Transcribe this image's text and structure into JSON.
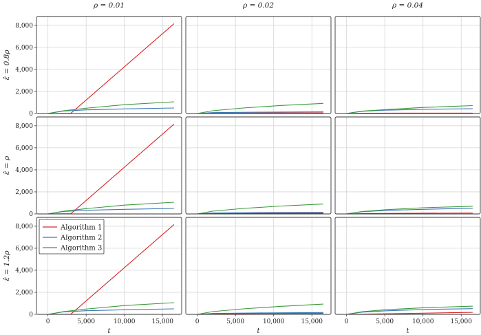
{
  "chart_data": {
    "type": "line",
    "layout": "3x3 facet grid",
    "col_titles": [
      "ρ = 0.01",
      "ρ = 0.02",
      "ρ = 0.04"
    ],
    "row_titles": [
      "ε̂ = 0.8ρ",
      "ε̂ = ρ",
      "ε̂ = 1.2ρ"
    ],
    "xlabel": "t",
    "xlim": [
      -1500,
      17500
    ],
    "ylim": [
      0,
      8800
    ],
    "xticks": [
      0,
      5000,
      10000,
      15000
    ],
    "xtick_labels": [
      "0",
      "5,000",
      "10,000",
      "15,000"
    ],
    "yticks": [
      0,
      2000,
      4000,
      6000,
      8000
    ],
    "ytick_labels": [
      "0",
      "2,000",
      "4,000",
      "6,000",
      "8,000"
    ],
    "grid": true,
    "legend": {
      "placement": "top-left of bottom-left panel",
      "entries": [
        "Algorithm 1",
        "Algorithm 2",
        "Algorithm 3"
      ]
    },
    "colors": {
      "Algorithm 1": "#d62728",
      "Algorithm 2": "#3a78b5",
      "Algorithm 3": "#3a9a3a"
    },
    "panels": [
      {
        "row": 0,
        "col": 0,
        "series": [
          {
            "name": "Algorithm 1",
            "points": [
              [
                0,
                0
              ],
              [
                3000,
                20
              ],
              [
                16500,
                8150
              ]
            ]
          },
          {
            "name": "Algorithm 2",
            "points": [
              [
                0,
                0
              ],
              [
                2000,
                220
              ],
              [
                5000,
                330
              ],
              [
                10000,
                420
              ],
              [
                16500,
                500
              ]
            ]
          },
          {
            "name": "Algorithm 3",
            "points": [
              [
                0,
                0
              ],
              [
                2000,
                250
              ],
              [
                5000,
                480
              ],
              [
                10000,
                800
              ],
              [
                16500,
                1060
              ]
            ]
          }
        ]
      },
      {
        "row": 0,
        "col": 1,
        "series": [
          {
            "name": "Algorithm 1",
            "points": [
              [
                0,
                0
              ],
              [
                2000,
                40
              ],
              [
                8000,
                50
              ],
              [
                16500,
                60
              ]
            ]
          },
          {
            "name": "Algorithm 2",
            "points": [
              [
                0,
                0
              ],
              [
                2000,
                80
              ],
              [
                8000,
                120
              ],
              [
                16500,
                150
              ]
            ]
          },
          {
            "name": "Algorithm 3",
            "points": [
              [
                0,
                0
              ],
              [
                2000,
                250
              ],
              [
                6000,
                500
              ],
              [
                11000,
                730
              ],
              [
                16500,
                920
              ]
            ]
          }
        ]
      },
      {
        "row": 0,
        "col": 2,
        "series": [
          {
            "name": "Algorithm 1",
            "points": [
              [
                0,
                0
              ],
              [
                2000,
                30
              ],
              [
                8000,
                40
              ],
              [
                16500,
                40
              ]
            ]
          },
          {
            "name": "Algorithm 2",
            "points": [
              [
                0,
                0
              ],
              [
                2000,
                200
              ],
              [
                5000,
                300
              ],
              [
                10000,
                380
              ],
              [
                16500,
                430
              ]
            ]
          },
          {
            "name": "Algorithm 3",
            "points": [
              [
                0,
                0
              ],
              [
                2000,
                220
              ],
              [
                5000,
                350
              ],
              [
                10000,
                550
              ],
              [
                16500,
                720
              ]
            ]
          }
        ]
      },
      {
        "row": 1,
        "col": 0,
        "series": [
          {
            "name": "Algorithm 1",
            "points": [
              [
                0,
                0
              ],
              [
                3000,
                20
              ],
              [
                16500,
                8150
              ]
            ]
          },
          {
            "name": "Algorithm 2",
            "points": [
              [
                0,
                0
              ],
              [
                2000,
                220
              ],
              [
                5000,
                330
              ],
              [
                10000,
                420
              ],
              [
                16500,
                500
              ]
            ]
          },
          {
            "name": "Algorithm 3",
            "points": [
              [
                0,
                0
              ],
              [
                2000,
                250
              ],
              [
                5000,
                480
              ],
              [
                10000,
                800
              ],
              [
                16500,
                1060
              ]
            ]
          }
        ]
      },
      {
        "row": 1,
        "col": 1,
        "series": [
          {
            "name": "Algorithm 1",
            "points": [
              [
                0,
                0
              ],
              [
                2000,
                40
              ],
              [
                8000,
                60
              ],
              [
                16500,
                70
              ]
            ]
          },
          {
            "name": "Algorithm 2",
            "points": [
              [
                0,
                0
              ],
              [
                2000,
                80
              ],
              [
                8000,
                120
              ],
              [
                16500,
                150
              ]
            ]
          },
          {
            "name": "Algorithm 3",
            "points": [
              [
                0,
                0
              ],
              [
                2000,
                250
              ],
              [
                6000,
                500
              ],
              [
                11000,
                720
              ],
              [
                16500,
                900
              ]
            ]
          }
        ]
      },
      {
        "row": 1,
        "col": 2,
        "series": [
          {
            "name": "Algorithm 1",
            "points": [
              [
                0,
                0
              ],
              [
                2000,
                30
              ],
              [
                8000,
                60
              ],
              [
                16500,
                80
              ]
            ]
          },
          {
            "name": "Algorithm 2",
            "points": [
              [
                0,
                0
              ],
              [
                2000,
                200
              ],
              [
                5000,
                320
              ],
              [
                10000,
                420
              ],
              [
                16500,
                520
              ]
            ]
          },
          {
            "name": "Algorithm 3",
            "points": [
              [
                0,
                0
              ],
              [
                2000,
                220
              ],
              [
                5000,
                380
              ],
              [
                10000,
                560
              ],
              [
                16500,
                700
              ]
            ]
          }
        ]
      },
      {
        "row": 2,
        "col": 0,
        "series": [
          {
            "name": "Algorithm 1",
            "points": [
              [
                0,
                0
              ],
              [
                3000,
                20
              ],
              [
                16500,
                8150
              ]
            ]
          },
          {
            "name": "Algorithm 2",
            "points": [
              [
                0,
                0
              ],
              [
                2000,
                220
              ],
              [
                5000,
                330
              ],
              [
                10000,
                420
              ],
              [
                16500,
                500
              ]
            ]
          },
          {
            "name": "Algorithm 3",
            "points": [
              [
                0,
                0
              ],
              [
                2000,
                250
              ],
              [
                5000,
                480
              ],
              [
                10000,
                800
              ],
              [
                16500,
                1060
              ]
            ]
          }
        ]
      },
      {
        "row": 2,
        "col": 1,
        "series": [
          {
            "name": "Algorithm 1",
            "points": [
              [
                0,
                0
              ],
              [
                2000,
                40
              ],
              [
                8000,
                80
              ],
              [
                16500,
                100
              ]
            ]
          },
          {
            "name": "Algorithm 2",
            "points": [
              [
                0,
                0
              ],
              [
                2000,
                80
              ],
              [
                8000,
                130
              ],
              [
                16500,
                170
              ]
            ]
          },
          {
            "name": "Algorithm 3",
            "points": [
              [
                0,
                0
              ],
              [
                2000,
                250
              ],
              [
                6000,
                500
              ],
              [
                11000,
                730
              ],
              [
                16500,
                930
              ]
            ]
          }
        ]
      },
      {
        "row": 2,
        "col": 2,
        "series": [
          {
            "name": "Algorithm 1",
            "points": [
              [
                0,
                0
              ],
              [
                2000,
                20
              ],
              [
                8000,
                80
              ],
              [
                16500,
                180
              ]
            ]
          },
          {
            "name": "Algorithm 2",
            "points": [
              [
                0,
                0
              ],
              [
                2000,
                200
              ],
              [
                5000,
                320
              ],
              [
                10000,
                440
              ],
              [
                16500,
                520
              ]
            ]
          },
          {
            "name": "Algorithm 3",
            "points": [
              [
                0,
                0
              ],
              [
                2000,
                240
              ],
              [
                5000,
                420
              ],
              [
                10000,
                600
              ],
              [
                16500,
                740
              ]
            ]
          }
        ]
      }
    ]
  }
}
